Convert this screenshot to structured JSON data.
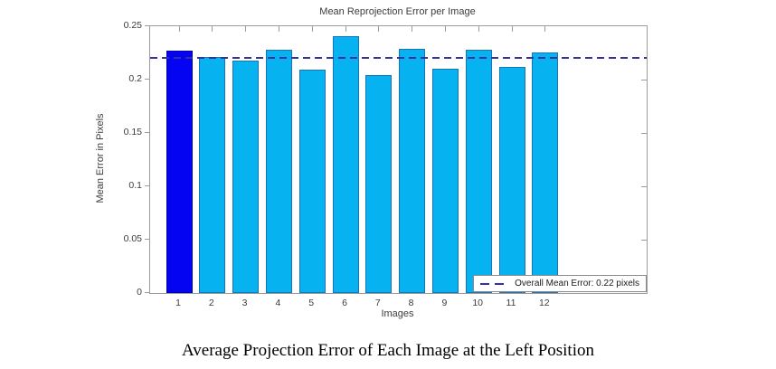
{
  "page": {
    "caption": "Average Projection Error of Each Image at the Left Position"
  },
  "chart_data": {
    "type": "bar",
    "title": "Mean Reprojection Error per Image",
    "xlabel": "Images",
    "ylabel": "Mean Error in Pixels",
    "categories": [
      "1",
      "2",
      "3",
      "4",
      "5",
      "6",
      "7",
      "8",
      "9",
      "10",
      "11",
      "12"
    ],
    "values": [
      0.227,
      0.221,
      0.218,
      0.228,
      0.209,
      0.241,
      0.204,
      0.229,
      0.21,
      0.228,
      0.212,
      0.225
    ],
    "ylim": [
      0,
      0.25
    ],
    "ytick_values": [
      0,
      0.05,
      0.1,
      0.15,
      0.2,
      0.25
    ],
    "ytick_labels": [
      "0",
      "0.05",
      "0.1",
      "0.15",
      "0.2",
      "0.25"
    ],
    "grid": false,
    "legend": {
      "label": "Overall Mean Error: 0.22 pixels",
      "position": "southeast"
    },
    "reference_line": {
      "value": 0.22,
      "style": "dashed"
    },
    "colors": {
      "bar_fill": "#06b2f0",
      "bar_edge": "#1b74b8",
      "highlight_fill": "#0404f2",
      "highlight_edge": "#0202a8",
      "reference_line": "#32329e",
      "axis": "#9c9c9c"
    },
    "highlight_index": 0
  }
}
